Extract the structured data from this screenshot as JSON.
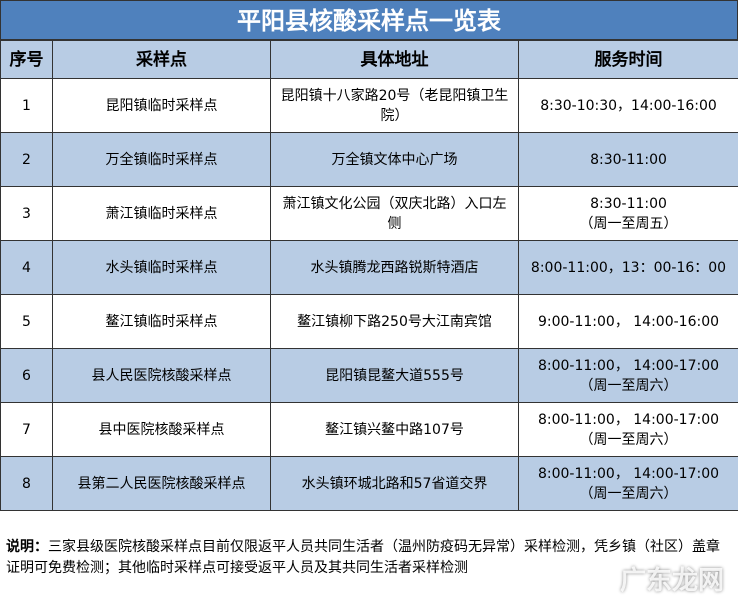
{
  "title": "平阳县核酸采样点一览表",
  "table": {
    "headers": [
      "序号",
      "采样点",
      "具体地址",
      "服务时间"
    ],
    "rows": [
      {
        "no": "1",
        "site": "昆阳镇临时采样点",
        "address": "昆阳镇十八家路20号（老昆阳镇卫生院）",
        "time": [
          "8:30-10:30，14:00-16:00"
        ]
      },
      {
        "no": "2",
        "site": "万全镇临时采样点",
        "address": "万全镇文体中心广场",
        "time": [
          "8:30-11:00"
        ]
      },
      {
        "no": "3",
        "site": "萧江镇临时采样点",
        "address": "萧江镇文化公园（双庆北路）入口左侧",
        "time": [
          "8:30-11:00",
          "（周一至周五）"
        ]
      },
      {
        "no": "4",
        "site": "水头镇临时采样点",
        "address": "水头镇腾龙西路锐斯特酒店",
        "time": [
          "8:00-11:00，13：00-16：00"
        ]
      },
      {
        "no": "5",
        "site": "鳌江镇临时采样点",
        "address": "鳌江镇柳下路250号大江南宾馆",
        "time": [
          "9:00-11:00， 14:00-16:00"
        ]
      },
      {
        "no": "6",
        "site": "县人民医院核酸采样点",
        "address": "昆阳镇昆鳌大道555号",
        "time": [
          "8:00-11:00， 14:00-17:00",
          "（周一至周六）"
        ]
      },
      {
        "no": "7",
        "site": "县中医院核酸采样点",
        "address": "鳌江镇兴鳌中路107号",
        "time": [
          "8:00-11:00， 14:00-17:00",
          "（周一至周六）"
        ]
      },
      {
        "no": "8",
        "site": "县第二人民医院核酸采样点",
        "address": "水头镇环城北路和57省道交界",
        "time": [
          "8:00-11:00， 14:00-17:00",
          "（周一至周六）"
        ]
      }
    ]
  },
  "note": {
    "label": "说明：",
    "text": "三家县级医院核酸采样点目前仅限返平人员共同生活者（温州防疫码无异常）采样检测，凭乡镇（社区）盖章证明可免费检测；其他临时采样点可接受返平人员及其共同生活者采样检测"
  },
  "watermark": "广东龙网"
}
